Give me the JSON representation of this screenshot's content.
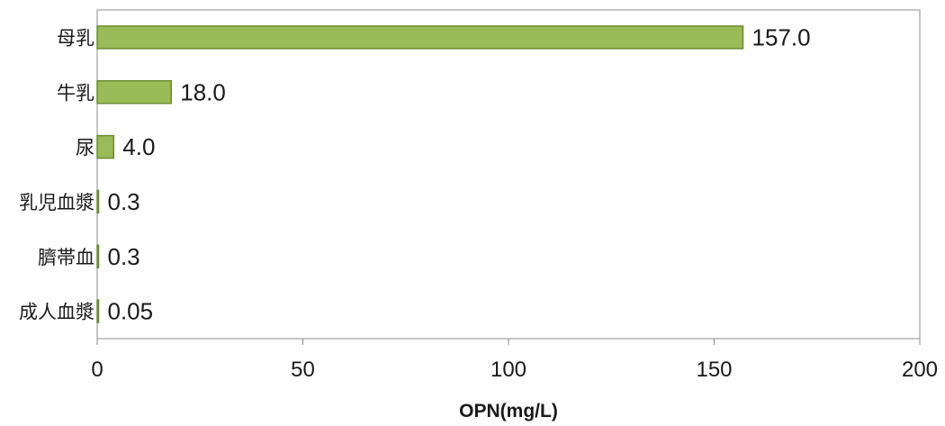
{
  "chart_data": {
    "type": "bar",
    "orientation": "horizontal",
    "categories": [
      "母乳",
      "牛乳",
      "尿",
      "乳児血漿",
      "臍帯血",
      "成人血漿"
    ],
    "values": [
      157.0,
      18.0,
      4.0,
      0.3,
      0.3,
      0.05
    ],
    "data_labels": [
      "157.0",
      "18.0",
      "4.0",
      "0.3",
      "0.3",
      "0.05"
    ],
    "xlabel": "OPN(mg/L)",
    "ylabel": "",
    "xlim": [
      0,
      200
    ],
    "x_ticks": [
      0,
      50,
      100,
      150,
      200
    ],
    "grid": false,
    "legend": "none",
    "colors": {
      "bar_fill": "#9bbb59",
      "bar_stroke": "#6b8c2e",
      "axis": "#8c8c8c"
    }
  }
}
